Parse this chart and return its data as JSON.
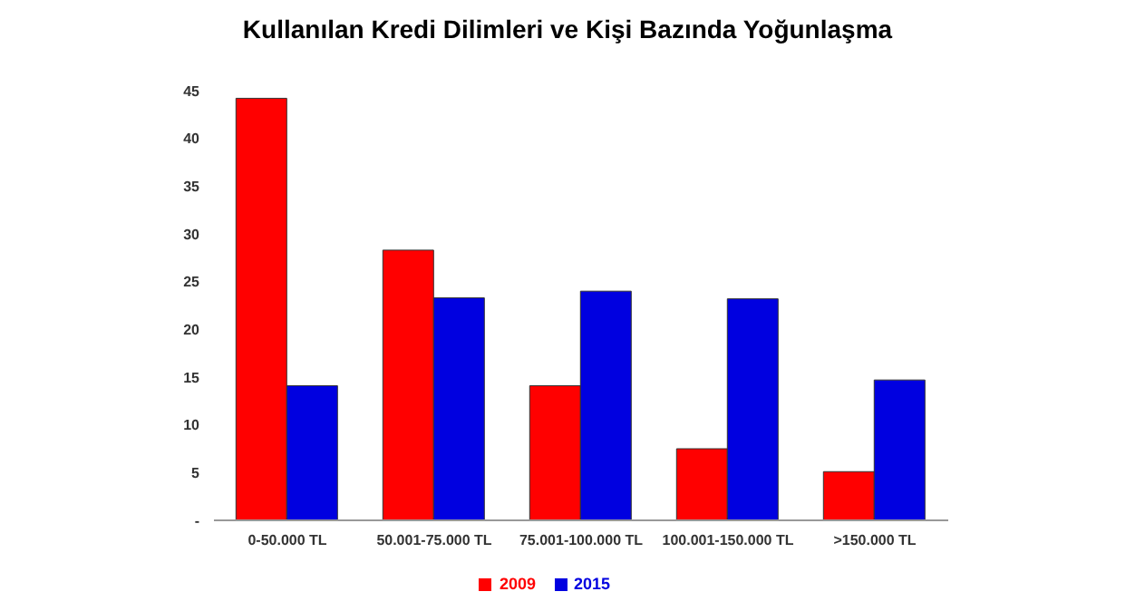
{
  "chart_data": {
    "type": "bar",
    "title": "Kullanılan Kredi Dilimleri ve Kişi Bazında Yoğunlaşma",
    "categories": [
      "0-50.000 TL",
      "50.001-75.000 TL",
      "75.001-100.000 TL",
      "100.001-150.000 TL",
      ">150.000 TL"
    ],
    "series": [
      {
        "name": "2009",
        "color": "#ff0000",
        "values": [
          44.2,
          28.3,
          14.1,
          7.5,
          5.1
        ]
      },
      {
        "name": "2015",
        "color": "#0000e0",
        "values": [
          14.1,
          23.3,
          24.0,
          23.2,
          14.7
        ]
      }
    ],
    "ylim": [
      0,
      45
    ],
    "yticks": [
      {
        "value": 0,
        "label": "-"
      },
      5,
      10,
      15,
      20,
      25,
      30,
      35,
      40,
      45
    ],
    "grid": false,
    "legend": "bottom"
  }
}
